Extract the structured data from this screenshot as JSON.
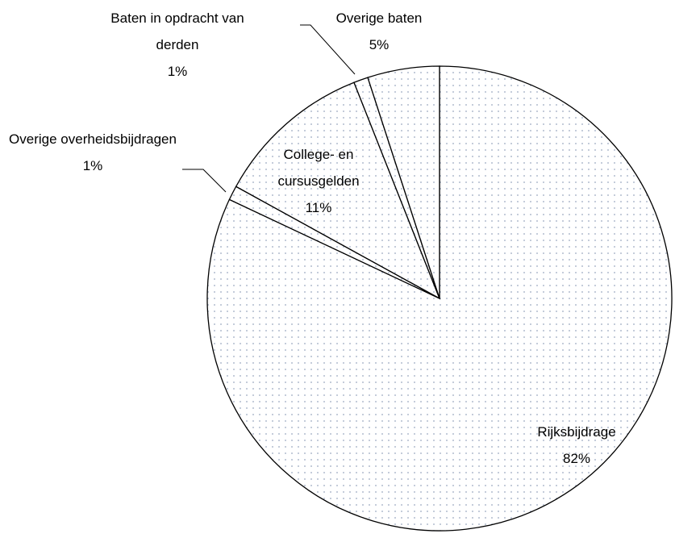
{
  "chart_data": {
    "type": "pie",
    "categories": [
      "Rijksbijdrage",
      "Overige overheidsbijdragen",
      "College- en cursusgelden",
      "Baten in opdracht van derden",
      "Overige baten"
    ],
    "values": [
      82,
      1,
      11,
      1,
      5
    ],
    "value_labels": [
      "82%",
      "1%",
      "11%",
      "1%",
      "5%"
    ],
    "color": "#9aa8c0"
  }
}
